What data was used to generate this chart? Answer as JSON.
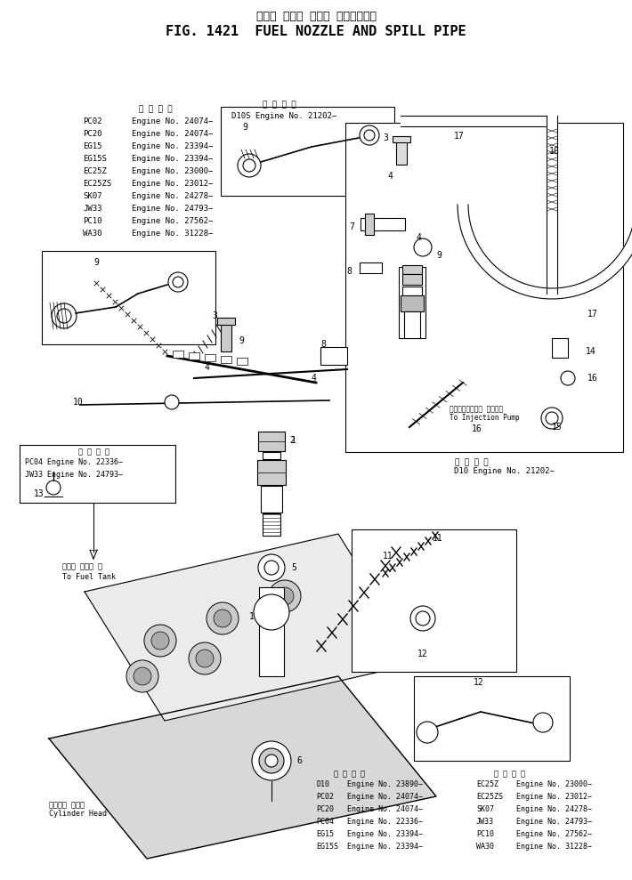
{
  "title_jp": "フェル ノズル および スピルパイプ",
  "title_en": "FIG. 1421  FUEL NOZZLE AND SPILL PIPE",
  "bg_color": "#ffffff",
  "fg_color": "#000000",
  "fig_width": 7.1,
  "fig_height": 9.89,
  "dpi": 100,
  "applicability_header": "適 用 号 等",
  "top_left_table": [
    [
      "PC02",
      "Engine No. 24074−"
    ],
    [
      "PC20",
      "Engine No. 24074−"
    ],
    [
      "EG15",
      "Engine No. 23394−"
    ],
    [
      "EG15S",
      "Engine No. 23394−"
    ],
    [
      "EC25Z",
      "Engine No. 23000−"
    ],
    [
      "EC25ZS",
      "Engine No. 23012−"
    ],
    [
      "SK07",
      "Engine No. 24278−"
    ],
    [
      "JW33",
      "Engine No. 24793−"
    ],
    [
      "PC10",
      "Engine No. 27562−"
    ],
    [
      "WA30",
      "Engine No. 31228−"
    ]
  ],
  "top_center_label": "D10S Engine No. 21202−",
  "top_center_appl": "適 用 号 等",
  "left_box_appl": "適 用 号 等",
  "left_box_lines": [
    "PC04 Engine No. 22336−",
    "JW33 Engine No. 24793−"
  ],
  "bottom_left_label": "シリンダ ヘッド\nCylinder Head",
  "bottom_left2_jp": "フェル タンク へ",
  "bottom_left2_en": "To Fuel Tank",
  "right_box_appl": "適 用 号 等",
  "right_box_label": "D10 Engine No. 21202−",
  "right_inj_label_jp": "インジェクション ポンプへ",
  "right_inj_label_en": "To Injection Pump",
  "bottom_table_header1": "適 用 号 等",
  "bottom_table_header2": "適 用 号 等",
  "bottom_table_col1": [
    [
      "D10",
      "Engine No. 23890−"
    ],
    [
      "PC02",
      "Engine No. 24074−"
    ],
    [
      "PC20",
      "Engine No. 24074−"
    ],
    [
      "PC04",
      "Engine No. 22336−"
    ],
    [
      "EG15",
      "Engine No. 23394−"
    ],
    [
      "EG15S",
      "Engine No. 23394−"
    ]
  ],
  "bottom_table_sep": [
    [
      "EC25Z",
      "Engine No. 23000−"
    ],
    [
      "EC25ZS",
      "Engine No. 23012−"
    ],
    [
      "SK07",
      "Engine No. 24278−"
    ],
    [
      "JW33",
      "Engine No. 24793−"
    ],
    [
      "PC10",
      "Engine No. 27562−"
    ],
    [
      "WA30",
      "Engine No. 31228−"
    ]
  ]
}
